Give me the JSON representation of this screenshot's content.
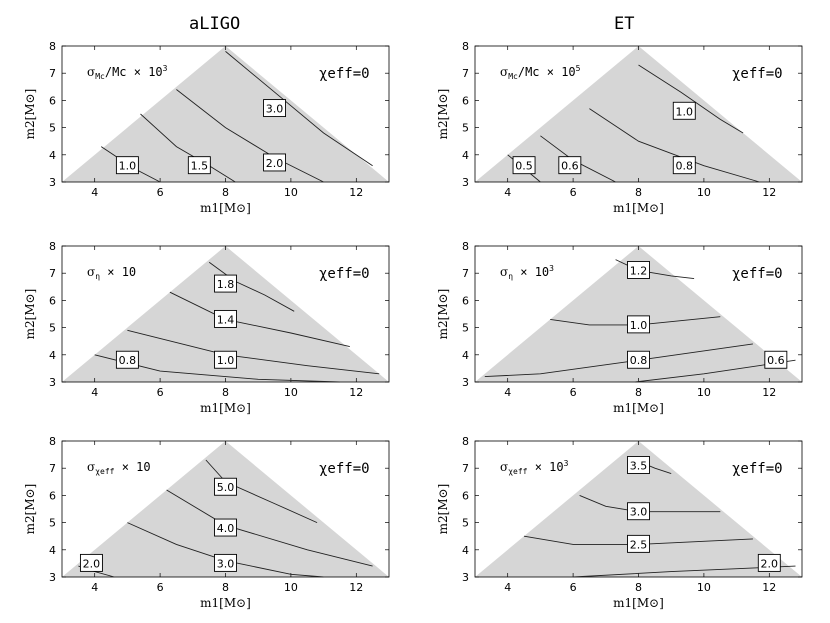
{
  "columns": [
    "aLIGO",
    "ET"
  ],
  "chart_data": [
    {
      "type": "contour",
      "column": "aLIGO",
      "title": "σ_Mc / Mc × 10^3",
      "title_parts": {
        "sym": "σ",
        "sub": "Mc",
        "rest": "/Mc × 10",
        "sup": "3"
      },
      "annotation": "χeff=0",
      "xlabel": "m1[M⊙]",
      "ylabel": "m2[M⊙]",
      "xlim": [
        3,
        13
      ],
      "ylim": [
        3,
        8
      ],
      "xticks": [
        4,
        6,
        8,
        10,
        12
      ],
      "yticks": [
        3,
        4,
        5,
        6,
        7,
        8
      ],
      "contours": [
        {
          "label": "1.0",
          "points": [
            [
              4.2,
              4.3
            ],
            [
              5.2,
              3.5
            ],
            [
              6.0,
              3.0
            ]
          ],
          "label_at": [
            5.0,
            3.6
          ]
        },
        {
          "label": "1.5",
          "points": [
            [
              5.4,
              5.5
            ],
            [
              6.5,
              4.3
            ],
            [
              7.5,
              3.6
            ],
            [
              8.3,
              3.0
            ]
          ],
          "label_at": [
            7.2,
            3.6
          ]
        },
        {
          "label": "2.0",
          "points": [
            [
              6.5,
              6.4
            ],
            [
              8.0,
              5.0
            ],
            [
              9.5,
              3.9
            ],
            [
              11.0,
              3.0
            ]
          ],
          "label_at": [
            9.5,
            3.7
          ]
        },
        {
          "label": "3.0",
          "points": [
            [
              8.0,
              7.8
            ],
            [
              9.5,
              6.3
            ],
            [
              11.0,
              4.8
            ],
            [
              12.5,
              3.6
            ]
          ],
          "label_at": [
            9.5,
            5.7
          ]
        }
      ]
    },
    {
      "type": "contour",
      "column": "ET",
      "title": "σ_Mc / Mc × 10^5",
      "title_parts": {
        "sym": "σ",
        "sub": "Mc",
        "rest": "/Mc × 10",
        "sup": "5"
      },
      "annotation": "χeff=0",
      "xlabel": "m1[M⊙]",
      "ylabel": "m2[M⊙]",
      "xlim": [
        3,
        13
      ],
      "ylim": [
        3,
        8
      ],
      "xticks": [
        4,
        6,
        8,
        10,
        12
      ],
      "yticks": [
        3,
        4,
        5,
        6,
        7,
        8
      ],
      "contours": [
        {
          "label": "0.5",
          "points": [
            [
              4.0,
              4.0
            ],
            [
              4.5,
              3.5
            ],
            [
              5.0,
              3.0
            ]
          ],
          "label_at": [
            4.5,
            3.6
          ]
        },
        {
          "label": "0.6",
          "points": [
            [
              5.0,
              4.7
            ],
            [
              6.0,
              3.8
            ],
            [
              7.3,
              3.0
            ]
          ],
          "label_at": [
            5.9,
            3.6
          ]
        },
        {
          "label": "0.8",
          "points": [
            [
              6.5,
              5.7
            ],
            [
              8.0,
              4.5
            ],
            [
              10.0,
              3.6
            ],
            [
              11.7,
              3.0
            ]
          ],
          "label_at": [
            9.4,
            3.6
          ]
        },
        {
          "label": "1.0",
          "points": [
            [
              8.0,
              7.3
            ],
            [
              9.3,
              6.3
            ],
            [
              10.5,
              5.3
            ],
            [
              11.2,
              4.8
            ]
          ],
          "label_at": [
            9.4,
            5.6
          ]
        }
      ]
    },
    {
      "type": "contour",
      "column": "aLIGO",
      "title": "σ_η × 10",
      "title_parts": {
        "sym": "σ",
        "sub": "η",
        "rest": " × 10",
        "sup": ""
      },
      "annotation": "χeff=0",
      "xlabel": "m1[M⊙]",
      "ylabel": "m2[M⊙]",
      "xlim": [
        3,
        13
      ],
      "ylim": [
        3,
        8
      ],
      "xticks": [
        4,
        6,
        8,
        10,
        12
      ],
      "yticks": [
        3,
        4,
        5,
        6,
        7,
        8
      ],
      "contours": [
        {
          "label": "0.8",
          "points": [
            [
              4.0,
              4.0
            ],
            [
              6.0,
              3.4
            ],
            [
              9.0,
              3.1
            ],
            [
              11.5,
              3.0
            ]
          ],
          "label_at": [
            5.0,
            3.8
          ]
        },
        {
          "label": "1.0",
          "points": [
            [
              5.0,
              4.9
            ],
            [
              8.0,
              4.0
            ],
            [
              10.5,
              3.6
            ],
            [
              12.7,
              3.3
            ]
          ],
          "label_at": [
            8.0,
            3.8
          ]
        },
        {
          "label": "1.4",
          "points": [
            [
              6.3,
              6.3
            ],
            [
              8.0,
              5.3
            ],
            [
              10.0,
              4.8
            ],
            [
              11.8,
              4.3
            ]
          ],
          "label_at": [
            8.0,
            5.3
          ]
        },
        {
          "label": "1.8",
          "points": [
            [
              7.5,
              7.4
            ],
            [
              8.3,
              6.7
            ],
            [
              9.2,
              6.2
            ],
            [
              10.1,
              5.6
            ]
          ],
          "label_at": [
            8.0,
            6.6
          ]
        }
      ]
    },
    {
      "type": "contour",
      "column": "ET",
      "title": "σ_η × 10^3",
      "title_parts": {
        "sym": "σ",
        "sub": "η",
        "rest": " × 10",
        "sup": "3"
      },
      "annotation": "χeff=0",
      "xlabel": "m1[M⊙]",
      "ylabel": "m2[M⊙]",
      "xlim": [
        3,
        13
      ],
      "ylim": [
        3,
        8
      ],
      "xticks": [
        4,
        6,
        8,
        10,
        12
      ],
      "yticks": [
        3,
        4,
        5,
        6,
        7,
        8
      ],
      "contours": [
        {
          "label": "0.6",
          "points": [
            [
              7.9,
              3.0
            ],
            [
              10.0,
              3.3
            ],
            [
              12.8,
              3.8
            ]
          ],
          "label_at": [
            12.2,
            3.8
          ]
        },
        {
          "label": "0.8",
          "points": [
            [
              3.3,
              3.2
            ],
            [
              5.0,
              3.3
            ],
            [
              8.0,
              3.8
            ],
            [
              11.5,
              4.4
            ]
          ],
          "label_at": [
            8.0,
            3.8
          ]
        },
        {
          "label": "1.0",
          "points": [
            [
              5.3,
              5.3
            ],
            [
              6.5,
              5.1
            ],
            [
              8.0,
              5.1
            ],
            [
              10.5,
              5.4
            ]
          ],
          "label_at": [
            8.0,
            5.1
          ]
        },
        {
          "label": "1.2",
          "points": [
            [
              7.3,
              7.5
            ],
            [
              8.0,
              7.1
            ],
            [
              9.0,
              6.9
            ],
            [
              9.7,
              6.8
            ]
          ],
          "label_at": [
            8.0,
            7.1
          ]
        }
      ]
    },
    {
      "type": "contour",
      "column": "aLIGO",
      "title": "σ_χeff × 10",
      "title_parts": {
        "sym": "σ",
        "sub": "χeff",
        "rest": " × 10",
        "sup": ""
      },
      "annotation": "χeff=0",
      "xlabel": "m1[M⊙]",
      "ylabel": "m2[M⊙]",
      "xlim": [
        3,
        13
      ],
      "ylim": [
        3,
        8
      ],
      "xticks": [
        4,
        6,
        8,
        10,
        12
      ],
      "yticks": [
        3,
        4,
        5,
        6,
        7,
        8
      ],
      "contours": [
        {
          "label": "2.0",
          "points": [
            [
              3.5,
              3.4
            ],
            [
              4.0,
              3.2
            ],
            [
              4.6,
              3.0
            ]
          ],
          "label_at": [
            3.9,
            3.5
          ]
        },
        {
          "label": "3.0",
          "points": [
            [
              5.0,
              5.0
            ],
            [
              6.5,
              4.2
            ],
            [
              8.0,
              3.6
            ],
            [
              10.0,
              3.1
            ],
            [
              11.0,
              3.0
            ]
          ],
          "label_at": [
            8.0,
            3.5
          ]
        },
        {
          "label": "4.0",
          "points": [
            [
              6.2,
              6.2
            ],
            [
              8.0,
              4.9
            ],
            [
              10.5,
              4.0
            ],
            [
              12.5,
              3.4
            ]
          ],
          "label_at": [
            8.0,
            4.8
          ]
        },
        {
          "label": "5.0",
          "points": [
            [
              7.4,
              7.3
            ],
            [
              8.0,
              6.5
            ],
            [
              9.5,
              5.7
            ],
            [
              10.8,
              5.0
            ]
          ],
          "label_at": [
            8.0,
            6.3
          ]
        }
      ]
    },
    {
      "type": "contour",
      "column": "ET",
      "title": "σ_χeff × 10^3",
      "title_parts": {
        "sym": "σ",
        "sub": "χeff",
        "rest": " × 10",
        "sup": "3"
      },
      "annotation": "χeff=0",
      "xlabel": "m1[M⊙]",
      "ylabel": "m2[M⊙]",
      "xlim": [
        3,
        13
      ],
      "ylim": [
        3,
        8
      ],
      "xticks": [
        4,
        6,
        8,
        10,
        12
      ],
      "yticks": [
        3,
        4,
        5,
        6,
        7,
        8
      ],
      "contours": [
        {
          "label": "2.0",
          "points": [
            [
              6.0,
              3.0
            ],
            [
              9.0,
              3.2
            ],
            [
              12.8,
              3.4
            ]
          ],
          "label_at": [
            12.0,
            3.5
          ]
        },
        {
          "label": "2.5",
          "points": [
            [
              4.5,
              4.5
            ],
            [
              6.0,
              4.2
            ],
            [
              8.0,
              4.2
            ],
            [
              11.5,
              4.4
            ]
          ],
          "label_at": [
            8.0,
            4.2
          ]
        },
        {
          "label": "3.0",
          "points": [
            [
              6.2,
              6.0
            ],
            [
              7.0,
              5.6
            ],
            [
              8.0,
              5.4
            ],
            [
              10.5,
              5.4
            ]
          ],
          "label_at": [
            8.0,
            5.4
          ]
        },
        {
          "label": "3.5",
          "points": [
            [
              7.7,
              7.4
            ],
            [
              8.5,
              7.0
            ],
            [
              9.0,
              6.8
            ]
          ],
          "label_at": [
            8.0,
            7.1
          ]
        }
      ]
    }
  ]
}
